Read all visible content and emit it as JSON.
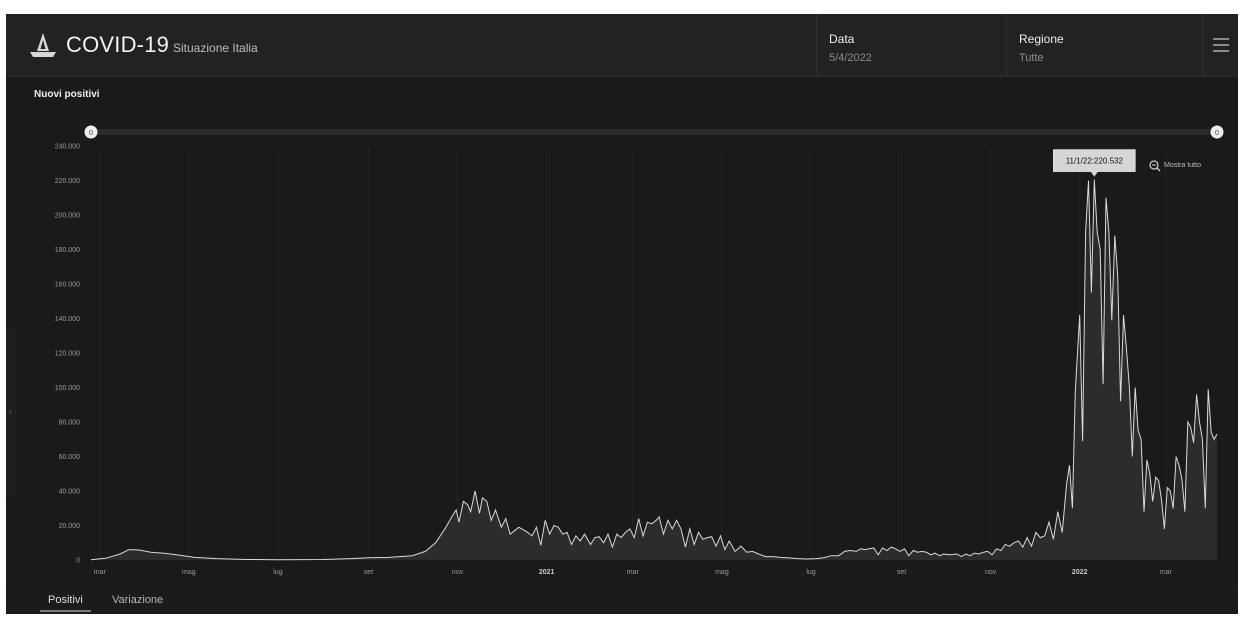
{
  "header": {
    "title": "COVID-19",
    "subtitle": "Situazione Italia",
    "date_label": "Data",
    "date_value": "5/4/2022",
    "region_label": "Regione",
    "region_value": "Tutte"
  },
  "panel": {
    "title": "Nuovi positivi"
  },
  "tabs": [
    {
      "label": "Positivi",
      "active": true
    },
    {
      "label": "Variazione",
      "active": false
    }
  ],
  "colors": {
    "background": "#1a1a1a",
    "line": "#d9d9d9",
    "area": "#2c2c2c",
    "tooltip_bg": "#d6d6d6"
  },
  "chart_data": {
    "type": "area",
    "title": "Nuovi positivi",
    "xlabel": "",
    "ylabel": "",
    "ylim": [
      0,
      240000
    ],
    "grid": false,
    "x_ticks": [
      {
        "date": "2020-03-01",
        "label": "mar",
        "bold": false
      },
      {
        "date": "2020-05-01",
        "label": "mag",
        "bold": false
      },
      {
        "date": "2020-07-01",
        "label": "lug",
        "bold": false
      },
      {
        "date": "2020-09-01",
        "label": "set",
        "bold": false
      },
      {
        "date": "2020-11-01",
        "label": "nov",
        "bold": false
      },
      {
        "date": "2021-01-01",
        "label": "2021",
        "bold": true
      },
      {
        "date": "2021-03-01",
        "label": "mar",
        "bold": false
      },
      {
        "date": "2021-05-01",
        "label": "mag",
        "bold": false
      },
      {
        "date": "2021-07-01",
        "label": "lug",
        "bold": false
      },
      {
        "date": "2021-09-01",
        "label": "set",
        "bold": false
      },
      {
        "date": "2021-11-01",
        "label": "nov",
        "bold": false
      },
      {
        "date": "2022-01-01",
        "label": "2022",
        "bold": true
      },
      {
        "date": "2022-03-01",
        "label": "mar",
        "bold": false
      }
    ],
    "y_ticks": [
      {
        "value": 0,
        "label": "0"
      },
      {
        "value": 20000,
        "label": "20.000"
      },
      {
        "value": 40000,
        "label": "40.000"
      },
      {
        "value": 60000,
        "label": "60.000"
      },
      {
        "value": 80000,
        "label": "80.000"
      },
      {
        "value": 100000,
        "label": "100.000"
      },
      {
        "value": 120000,
        "label": "120.000"
      },
      {
        "value": 140000,
        "label": "140.000"
      },
      {
        "value": 160000,
        "label": "160.000"
      },
      {
        "value": 180000,
        "label": "180.000"
      },
      {
        "value": 200000,
        "label": "200.000"
      },
      {
        "value": 220000,
        "label": "220.000"
      },
      {
        "value": 240000,
        "label": "240.000"
      }
    ],
    "series": [
      {
        "points": [
          [
            "2020-02-24",
            200
          ],
          [
            "2020-03-05",
            1000
          ],
          [
            "2020-03-15",
            3500
          ],
          [
            "2020-03-21",
            6000
          ],
          [
            "2020-03-28",
            5800
          ],
          [
            "2020-04-05",
            4500
          ],
          [
            "2020-04-15",
            3800
          ],
          [
            "2020-04-25",
            2700
          ],
          [
            "2020-05-05",
            1500
          ],
          [
            "2020-05-20",
            800
          ],
          [
            "2020-06-10",
            300
          ],
          [
            "2020-07-01",
            200
          ],
          [
            "2020-08-01",
            300
          ],
          [
            "2020-08-20",
            800
          ],
          [
            "2020-09-01",
            1300
          ],
          [
            "2020-09-15",
            1500
          ],
          [
            "2020-10-01",
            2500
          ],
          [
            "2020-10-10",
            5000
          ],
          [
            "2020-10-17",
            10000
          ],
          [
            "2020-10-24",
            19000
          ],
          [
            "2020-10-28",
            25000
          ],
          [
            "2020-10-31",
            29000
          ],
          [
            "2020-11-02",
            22000
          ],
          [
            "2020-11-05",
            34000
          ],
          [
            "2020-11-08",
            32000
          ],
          [
            "2020-11-10",
            28000
          ],
          [
            "2020-11-13",
            40000
          ],
          [
            "2020-11-16",
            27000
          ],
          [
            "2020-11-18",
            36000
          ],
          [
            "2020-11-21",
            34000
          ],
          [
            "2020-11-24",
            23000
          ],
          [
            "2020-11-27",
            29000
          ],
          [
            "2020-12-01",
            19000
          ],
          [
            "2020-12-04",
            24000
          ],
          [
            "2020-12-07",
            15000
          ],
          [
            "2020-12-10",
            17000
          ],
          [
            "2020-12-13",
            19000
          ],
          [
            "2020-12-16",
            17500
          ],
          [
            "2020-12-19",
            16000
          ],
          [
            "2020-12-22",
            14000
          ],
          [
            "2020-12-25",
            19000
          ],
          [
            "2020-12-28",
            8500
          ],
          [
            "2020-12-31",
            23000
          ],
          [
            "2021-01-03",
            15000
          ],
          [
            "2021-01-06",
            20000
          ],
          [
            "2021-01-09",
            19000
          ],
          [
            "2021-01-12",
            15000
          ],
          [
            "2021-01-15",
            16000
          ],
          [
            "2021-01-18",
            9000
          ],
          [
            "2021-01-21",
            14000
          ],
          [
            "2021-01-24",
            11000
          ],
          [
            "2021-01-27",
            15000
          ],
          [
            "2021-01-31",
            9000
          ],
          [
            "2021-02-03",
            13000
          ],
          [
            "2021-02-06",
            13500
          ],
          [
            "2021-02-09",
            10000
          ],
          [
            "2021-02-12",
            15000
          ],
          [
            "2021-02-15",
            7500
          ],
          [
            "2021-02-18",
            15000
          ],
          [
            "2021-02-21",
            13000
          ],
          [
            "2021-02-24",
            16000
          ],
          [
            "2021-02-27",
            18000
          ],
          [
            "2021-03-02",
            13000
          ],
          [
            "2021-03-05",
            24000
          ],
          [
            "2021-03-08",
            14000
          ],
          [
            "2021-03-11",
            22000
          ],
          [
            "2021-03-14",
            21000
          ],
          [
            "2021-03-17",
            23000
          ],
          [
            "2021-03-19",
            25000
          ],
          [
            "2021-03-22",
            15000
          ],
          [
            "2021-03-25",
            23000
          ],
          [
            "2021-03-28",
            18000
          ],
          [
            "2021-03-31",
            23000
          ],
          [
            "2021-04-03",
            18000
          ],
          [
            "2021-04-06",
            7500
          ],
          [
            "2021-04-09",
            18000
          ],
          [
            "2021-04-12",
            9000
          ],
          [
            "2021-04-15",
            16000
          ],
          [
            "2021-04-18",
            12000
          ],
          [
            "2021-04-21",
            13000
          ],
          [
            "2021-04-24",
            13500
          ],
          [
            "2021-04-27",
            8000
          ],
          [
            "2021-04-30",
            14000
          ],
          [
            "2021-05-03",
            6000
          ],
          [
            "2021-05-06",
            11000
          ],
          [
            "2021-05-10",
            5000
          ],
          [
            "2021-05-14",
            8000
          ],
          [
            "2021-05-18",
            4500
          ],
          [
            "2021-05-22",
            5000
          ],
          [
            "2021-05-26",
            3500
          ],
          [
            "2021-05-31",
            2000
          ],
          [
            "2021-06-05",
            2000
          ],
          [
            "2021-06-10",
            1500
          ],
          [
            "2021-06-16",
            1200
          ],
          [
            "2021-06-22",
            800
          ],
          [
            "2021-06-28",
            600
          ],
          [
            "2021-07-05",
            800
          ],
          [
            "2021-07-10",
            1400
          ],
          [
            "2021-07-15",
            2500
          ],
          [
            "2021-07-20",
            2500
          ],
          [
            "2021-07-24",
            5000
          ],
          [
            "2021-07-28",
            5500
          ],
          [
            "2021-08-01",
            5000
          ],
          [
            "2021-08-04",
            6500
          ],
          [
            "2021-08-07",
            6000
          ],
          [
            "2021-08-10",
            6500
          ],
          [
            "2021-08-13",
            7000
          ],
          [
            "2021-08-16",
            3000
          ],
          [
            "2021-08-19",
            7000
          ],
          [
            "2021-08-22",
            5500
          ],
          [
            "2021-08-25",
            7500
          ],
          [
            "2021-08-28",
            6500
          ],
          [
            "2021-08-31",
            5000
          ],
          [
            "2021-09-03",
            6500
          ],
          [
            "2021-09-06",
            2500
          ],
          [
            "2021-09-09",
            5500
          ],
          [
            "2021-09-12",
            4500
          ],
          [
            "2021-09-15",
            5000
          ],
          [
            "2021-09-18",
            4500
          ],
          [
            "2021-09-21",
            3000
          ],
          [
            "2021-09-24",
            4000
          ],
          [
            "2021-09-27",
            2500
          ],
          [
            "2021-09-30",
            3500
          ],
          [
            "2021-10-03",
            3000
          ],
          [
            "2021-10-06",
            3200
          ],
          [
            "2021-10-09",
            3500
          ],
          [
            "2021-10-12",
            2000
          ],
          [
            "2021-10-15",
            3500
          ],
          [
            "2021-10-18",
            2500
          ],
          [
            "2021-10-21",
            4000
          ],
          [
            "2021-10-24",
            3500
          ],
          [
            "2021-10-27",
            4500
          ],
          [
            "2021-10-30",
            5000
          ],
          [
            "2021-11-02",
            3000
          ],
          [
            "2021-11-05",
            6500
          ],
          [
            "2021-11-08",
            5500
          ],
          [
            "2021-11-11",
            9000
          ],
          [
            "2021-11-14",
            8000
          ],
          [
            "2021-11-17",
            10000
          ],
          [
            "2021-11-20",
            11000
          ],
          [
            "2021-11-23",
            7500
          ],
          [
            "2021-11-26",
            13000
          ],
          [
            "2021-11-29",
            8000
          ],
          [
            "2021-12-02",
            16000
          ],
          [
            "2021-12-05",
            13000
          ],
          [
            "2021-12-08",
            14000
          ],
          [
            "2021-12-11",
            22000
          ],
          [
            "2021-12-14",
            12000
          ],
          [
            "2021-12-17",
            28000
          ],
          [
            "2021-12-20",
            16000
          ],
          [
            "2021-12-23",
            44000
          ],
          [
            "2021-12-25",
            55000
          ],
          [
            "2021-12-27",
            30000
          ],
          [
            "2021-12-29",
            98000
          ],
          [
            "2022-01-01",
            142000
          ],
          [
            "2022-01-03",
            69000
          ],
          [
            "2022-01-05",
            190000
          ],
          [
            "2022-01-07",
            220000
          ],
          [
            "2022-01-09",
            155000
          ],
          [
            "2022-01-11",
            220532
          ],
          [
            "2022-01-13",
            190000
          ],
          [
            "2022-01-15",
            180000
          ],
          [
            "2022-01-17",
            102000
          ],
          [
            "2022-01-19",
            210000
          ],
          [
            "2022-01-21",
            190000
          ],
          [
            "2022-01-23",
            139000
          ],
          [
            "2022-01-25",
            188000
          ],
          [
            "2022-01-27",
            165000
          ],
          [
            "2022-01-29",
            92000
          ],
          [
            "2022-01-31",
            142000
          ],
          [
            "2022-02-02",
            122000
          ],
          [
            "2022-02-04",
            100000
          ],
          [
            "2022-02-06",
            60000
          ],
          [
            "2022-02-08",
            100000
          ],
          [
            "2022-02-10",
            75000
          ],
          [
            "2022-02-12",
            70000
          ],
          [
            "2022-02-14",
            28000
          ],
          [
            "2022-02-16",
            58000
          ],
          [
            "2022-02-18",
            50000
          ],
          [
            "2022-02-20",
            34000
          ],
          [
            "2022-02-22",
            48000
          ],
          [
            "2022-02-24",
            46000
          ],
          [
            "2022-02-26",
            35000
          ],
          [
            "2022-02-28",
            18000
          ],
          [
            "2022-03-02",
            42000
          ],
          [
            "2022-03-04",
            40000
          ],
          [
            "2022-03-06",
            30000
          ],
          [
            "2022-03-08",
            60000
          ],
          [
            "2022-03-10",
            55000
          ],
          [
            "2022-03-12",
            47000
          ],
          [
            "2022-03-14",
            28000
          ],
          [
            "2022-03-16",
            80000
          ],
          [
            "2022-03-18",
            77000
          ],
          [
            "2022-03-20",
            68000
          ],
          [
            "2022-03-22",
            96000
          ],
          [
            "2022-03-24",
            80000
          ],
          [
            "2022-03-26",
            70000
          ],
          [
            "2022-03-28",
            30000
          ],
          [
            "2022-03-30",
            99000
          ],
          [
            "2022-04-01",
            74000
          ],
          [
            "2022-04-03",
            70000
          ],
          [
            "2022-04-05",
            73000
          ]
        ]
      }
    ],
    "tooltip": {
      "date": "2022-01-11",
      "value": 220532,
      "text": "11/1/22:220.532"
    },
    "range_handles": {
      "left_label": "0",
      "right_label": "0"
    },
    "reset_zoom_label": "Mostra tutto"
  }
}
